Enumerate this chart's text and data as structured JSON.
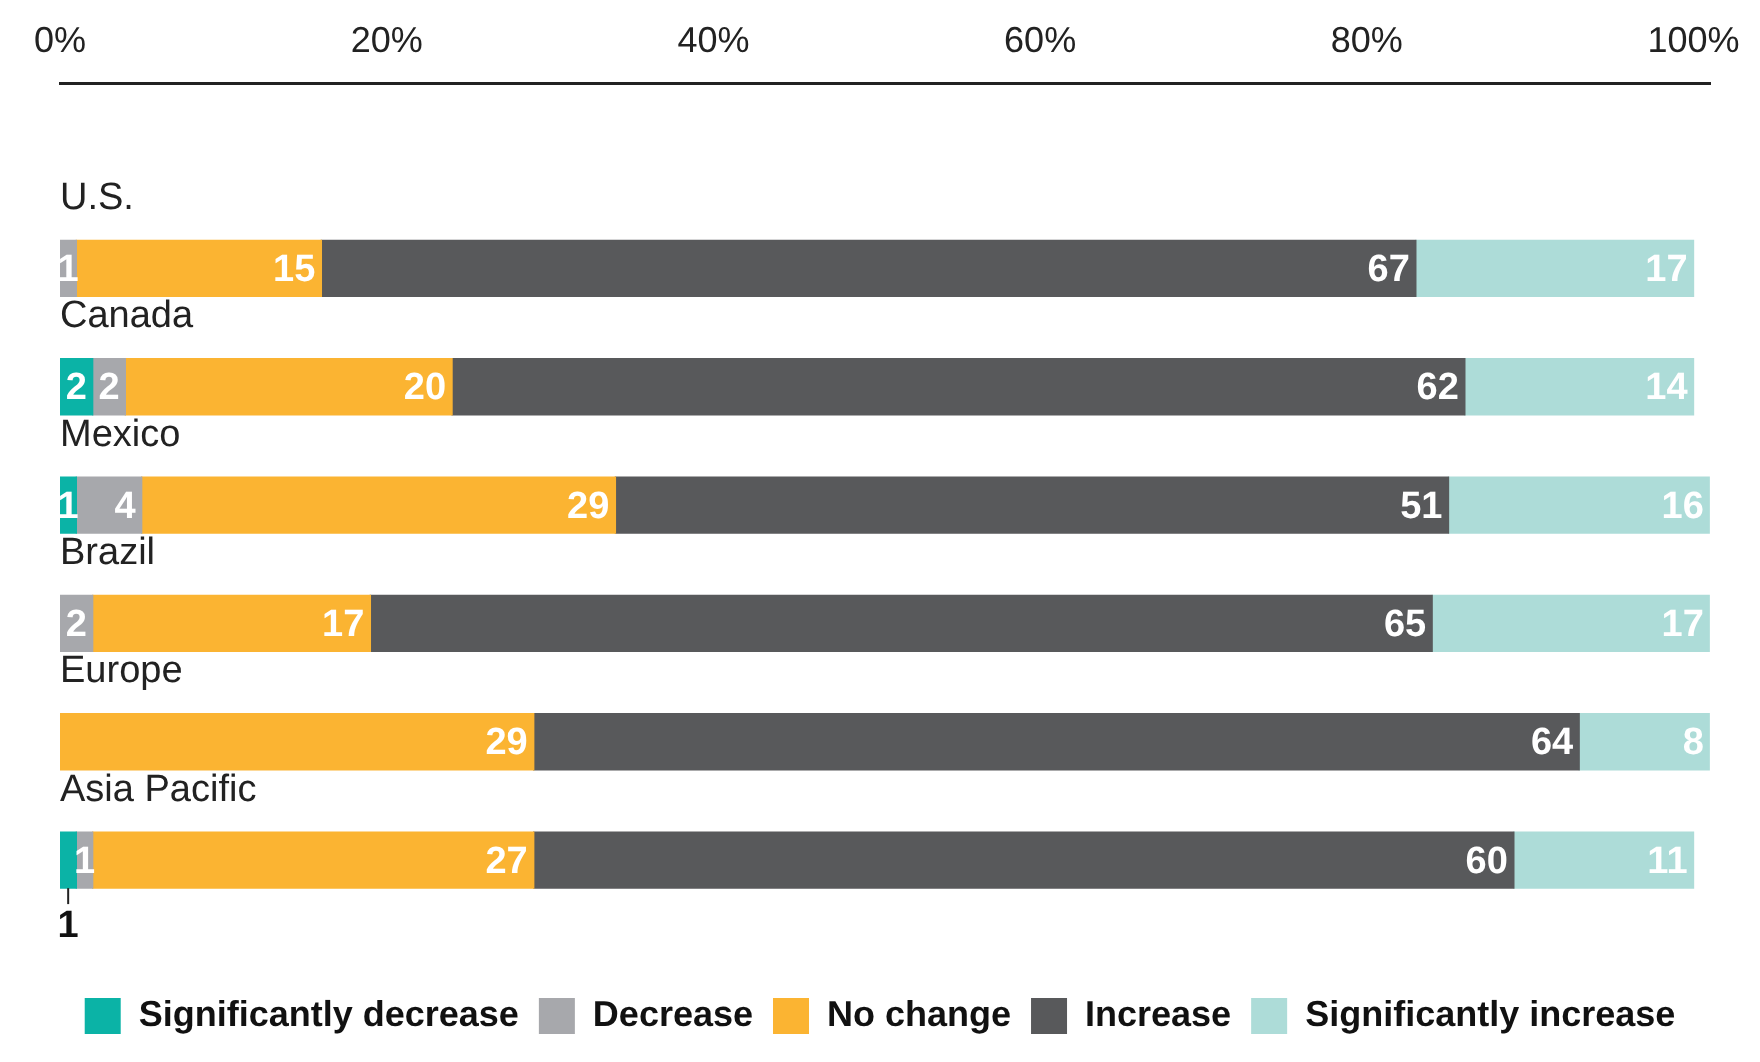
{
  "chart_data": {
    "type": "bar",
    "orientation": "horizontal",
    "stacked": true,
    "categories": [
      "U.S.",
      "Canada",
      "Mexico",
      "Brazil",
      "Europe",
      "Asia Pacific"
    ],
    "series": [
      {
        "name": "Significantly decrease",
        "color": "#0bb3a6",
        "values": [
          null,
          2,
          1,
          null,
          null,
          1
        ]
      },
      {
        "name": "Decrease",
        "color": "#a7a8ac",
        "values": [
          1,
          2,
          4,
          2,
          null,
          1
        ]
      },
      {
        "name": "No change",
        "color": "#fbb432",
        "values": [
          15,
          20,
          29,
          17,
          29,
          27
        ]
      },
      {
        "name": "Increase",
        "color": "#58595b",
        "values": [
          67,
          62,
          51,
          65,
          64,
          60
        ]
      },
      {
        "name": "Significantly increase",
        "color": "#addcd8",
        "values": [
          17,
          14,
          16,
          17,
          8,
          11
        ]
      }
    ],
    "xlim": [
      0,
      101
    ],
    "xticks": [
      {
        "value": 0,
        "label": "0%"
      },
      {
        "value": 20,
        "label": "20%"
      },
      {
        "value": 40,
        "label": "40%"
      },
      {
        "value": 60,
        "label": "60%"
      },
      {
        "value": 80,
        "label": "80%"
      },
      {
        "value": 100,
        "label": "100%"
      }
    ],
    "data_labels": true,
    "legend": "bottom",
    "grid": false
  }
}
